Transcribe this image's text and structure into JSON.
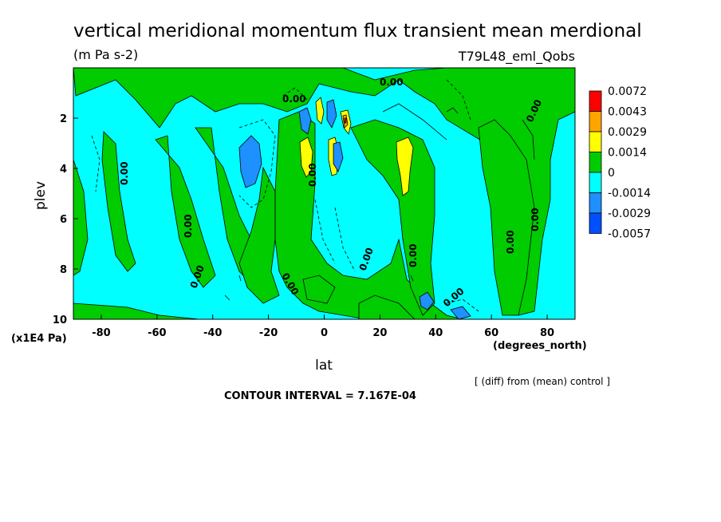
{
  "chart_data": {
    "type": "heatmap",
    "title": "vertical meridional momentum flux transient mean merdional",
    "units": "(m Pa s-2)",
    "experiment": "T79L48_eml_Qobs",
    "xlabel": "lat",
    "xunits": "(degrees_north)",
    "ylabel": "plev",
    "yunits": "(x1E4 Pa)",
    "xlim": [
      -90,
      90
    ],
    "ylim": [
      10,
      0
    ],
    "x_ticks": [
      -80,
      -60,
      -40,
      -20,
      0,
      20,
      40,
      60,
      80
    ],
    "y_ticks": [
      2,
      4,
      6,
      8,
      10
    ],
    "legend": {
      "placement": "right",
      "levels": [
        "0.0072",
        "0.0043",
        "0.0029",
        "0.0014",
        "0",
        "-0.0014",
        "-0.0029",
        "-0.0057"
      ],
      "colors": [
        "#ff0000",
        "#ffa500",
        "#ffff00",
        "#00cc00",
        "#00ffff",
        "#1e90ff",
        "#0050ff"
      ]
    },
    "contour_labels": [
      "0.00"
    ],
    "note": "[ (diff) from (mean) control ]",
    "contour_interval": "CONTOUR INTERVAL = 7.167E-04"
  }
}
